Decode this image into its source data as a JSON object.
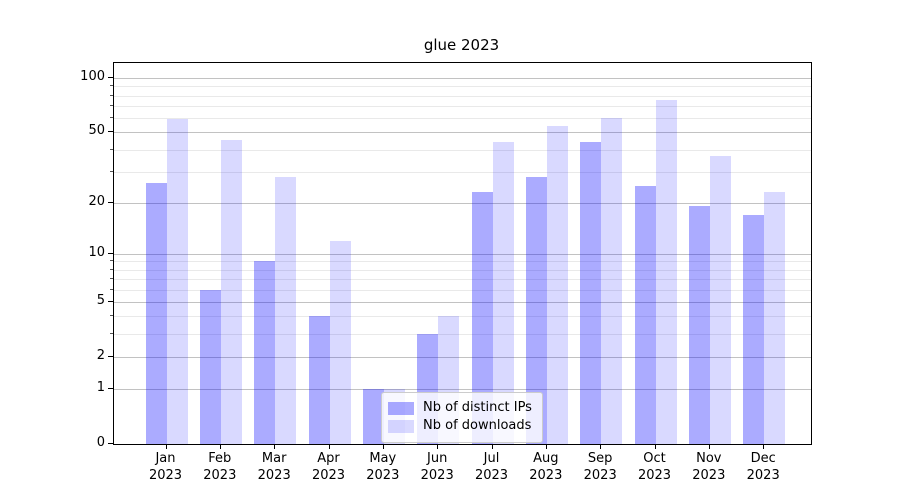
{
  "title": "glue 2023",
  "chart_data": {
    "type": "bar",
    "categories": [
      "Jan 2023",
      "Feb 2023",
      "Mar 2023",
      "Apr 2023",
      "May 2023",
      "Jun 2023",
      "Jul 2023",
      "Aug 2023",
      "Sep 2023",
      "Oct 2023",
      "Nov 2023",
      "Dec 2023"
    ],
    "series": [
      {
        "name": "Nb of distinct IPs",
        "color": "rgba(0,0,255,0.33)",
        "values": [
          26,
          6,
          9,
          4,
          1,
          3,
          23,
          28,
          44,
          25,
          19,
          17
        ]
      },
      {
        "name": "Nb of downloads",
        "color": "rgba(0,0,255,0.15)",
        "values": [
          59,
          45,
          28,
          12,
          1,
          4,
          44,
          54,
          60,
          76,
          37,
          23
        ]
      }
    ],
    "title": "glue 2023",
    "xlabel": "",
    "ylabel": "",
    "yscale": "log1p",
    "ylim": [
      0,
      121
    ],
    "y_ticks": [
      0,
      1,
      2,
      5,
      10,
      20,
      50,
      100
    ],
    "y_minor_ticks": [
      3,
      4,
      6,
      7,
      8,
      9,
      30,
      40,
      60,
      70,
      80,
      90
    ],
    "grid": true,
    "legend_position": "lower center"
  },
  "colors": {
    "bar_distinct_ips": "rgba(0,0,255,0.33)",
    "bar_downloads": "rgba(0,0,255,0.15)",
    "grid_major": "#c2c2c2",
    "grid_minor": "#e9e9e9",
    "axis": "#000000"
  }
}
